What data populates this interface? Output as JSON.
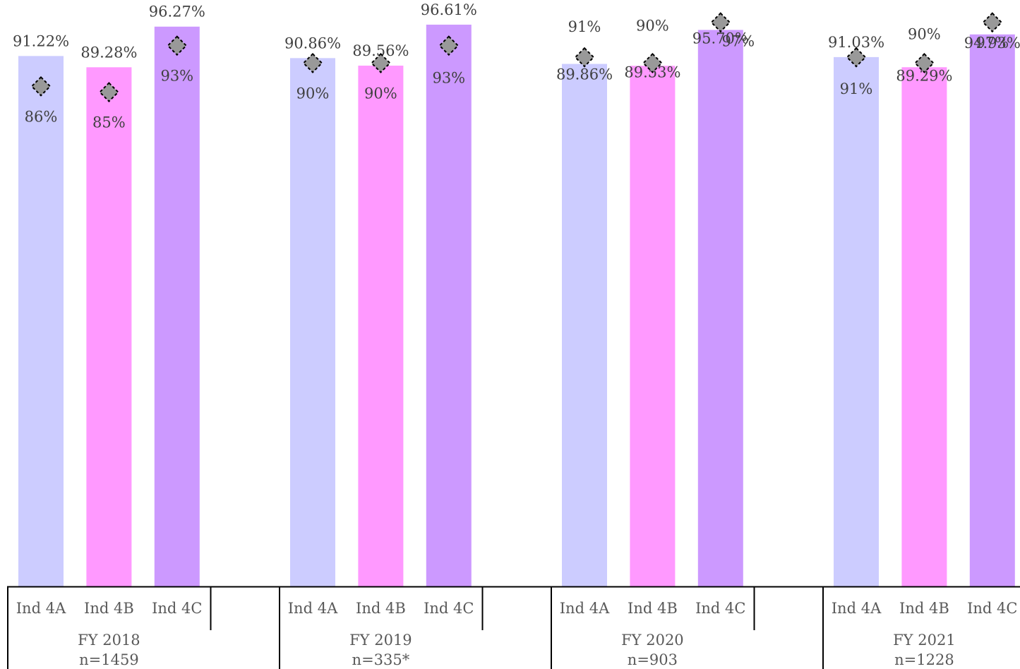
{
  "chart_data": {
    "type": "bar",
    "groups": [
      {
        "name": "FY 2018",
        "n": "n=1459"
      },
      {
        "name": "FY 2019",
        "n": "n=335*"
      },
      {
        "name": "FY 2020",
        "n": "n=903"
      },
      {
        "name": "FY 2021",
        "n": "n=1228"
      }
    ],
    "categories": [
      "Ind 4A",
      "Ind 4B",
      "Ind 4C"
    ],
    "colors": [
      "#ccccff",
      "#ff99ff",
      "#cc99ff"
    ],
    "target_marker_color": "#999999",
    "ylim": [
      0,
      100
    ],
    "grid": false,
    "legend": "none",
    "series": [
      {
        "values": [
          [
            91.22,
            89.28,
            96.27
          ],
          [
            90.86,
            89.56,
            96.61
          ],
          [
            89.86,
            89.53,
            95.7
          ],
          [
            91.03,
            89.29,
            94.93
          ]
        ],
        "labels": [
          [
            "91.22%",
            "89.28%",
            "96.27%"
          ],
          [
            "90.86%",
            "89.56%",
            "96.61%"
          ],
          [
            "89.86%",
            "89.53%",
            "95.70%"
          ],
          [
            "91.03%",
            "89.29%",
            "94.93%"
          ]
        ]
      },
      {
        "marker": "diamond",
        "values": [
          [
            86,
            85,
            93
          ],
          [
            90,
            90,
            93
          ],
          [
            91,
            90,
            97
          ],
          [
            91,
            90,
            97
          ]
        ],
        "labels": [
          [
            "86%",
            "85%",
            "93%"
          ],
          [
            "90%",
            "90%",
            "93%"
          ],
          [
            "91%",
            "90%",
            "97%"
          ],
          [
            "91%",
            "90%",
            "97%"
          ]
        ]
      }
    ]
  }
}
